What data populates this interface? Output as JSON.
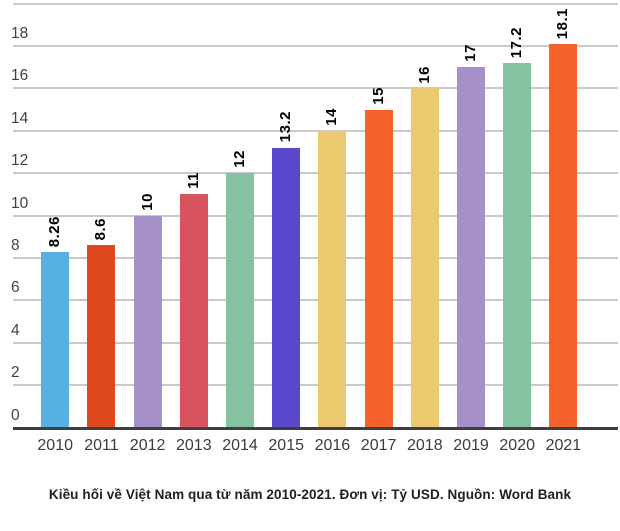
{
  "chart_data": {
    "type": "bar",
    "caption": "Kiều hối về Việt Nam qua từ năm 2010-2021. Đơn vị: Tỷ USD. Nguồn: Word Bank",
    "categories": [
      "2010",
      "2011",
      "2012",
      "2013",
      "2014",
      "2015",
      "2016",
      "2017",
      "2018",
      "2019",
      "2020",
      "2021"
    ],
    "values": [
      8.26,
      8.6,
      10,
      11,
      12,
      13.2,
      14,
      15,
      16,
      17,
      17.2,
      18.1
    ],
    "value_labels": [
      "8.26",
      "8.6",
      "10",
      "11",
      "12",
      "13.2",
      "14",
      "15",
      "16",
      "17",
      "17.2",
      "18.1"
    ],
    "bar_colors": [
      "#55B1E2",
      "#E0491E",
      "#A590C8",
      "#D9535E",
      "#85C2A2",
      "#5A49CE",
      "#EBCA6F",
      "#F4612A",
      "#EBCA6F",
      "#A590C8",
      "#85C2A2",
      "#F4612A"
    ],
    "ylim": [
      0,
      20
    ],
    "ytick_step": 2,
    "ytick_labels": [
      "0",
      "2",
      "4",
      "6",
      "8",
      "10",
      "12",
      "14",
      "16",
      "18"
    ],
    "grid": true,
    "legend": "none",
    "gridline_color": "#c9c9c9",
    "axis_line_color": "#3f3f3f",
    "tick_label_color": "#424242",
    "xtick_label_color": "#3c3c3c",
    "value_label_color": "#000000",
    "caption_color": "#212121"
  }
}
